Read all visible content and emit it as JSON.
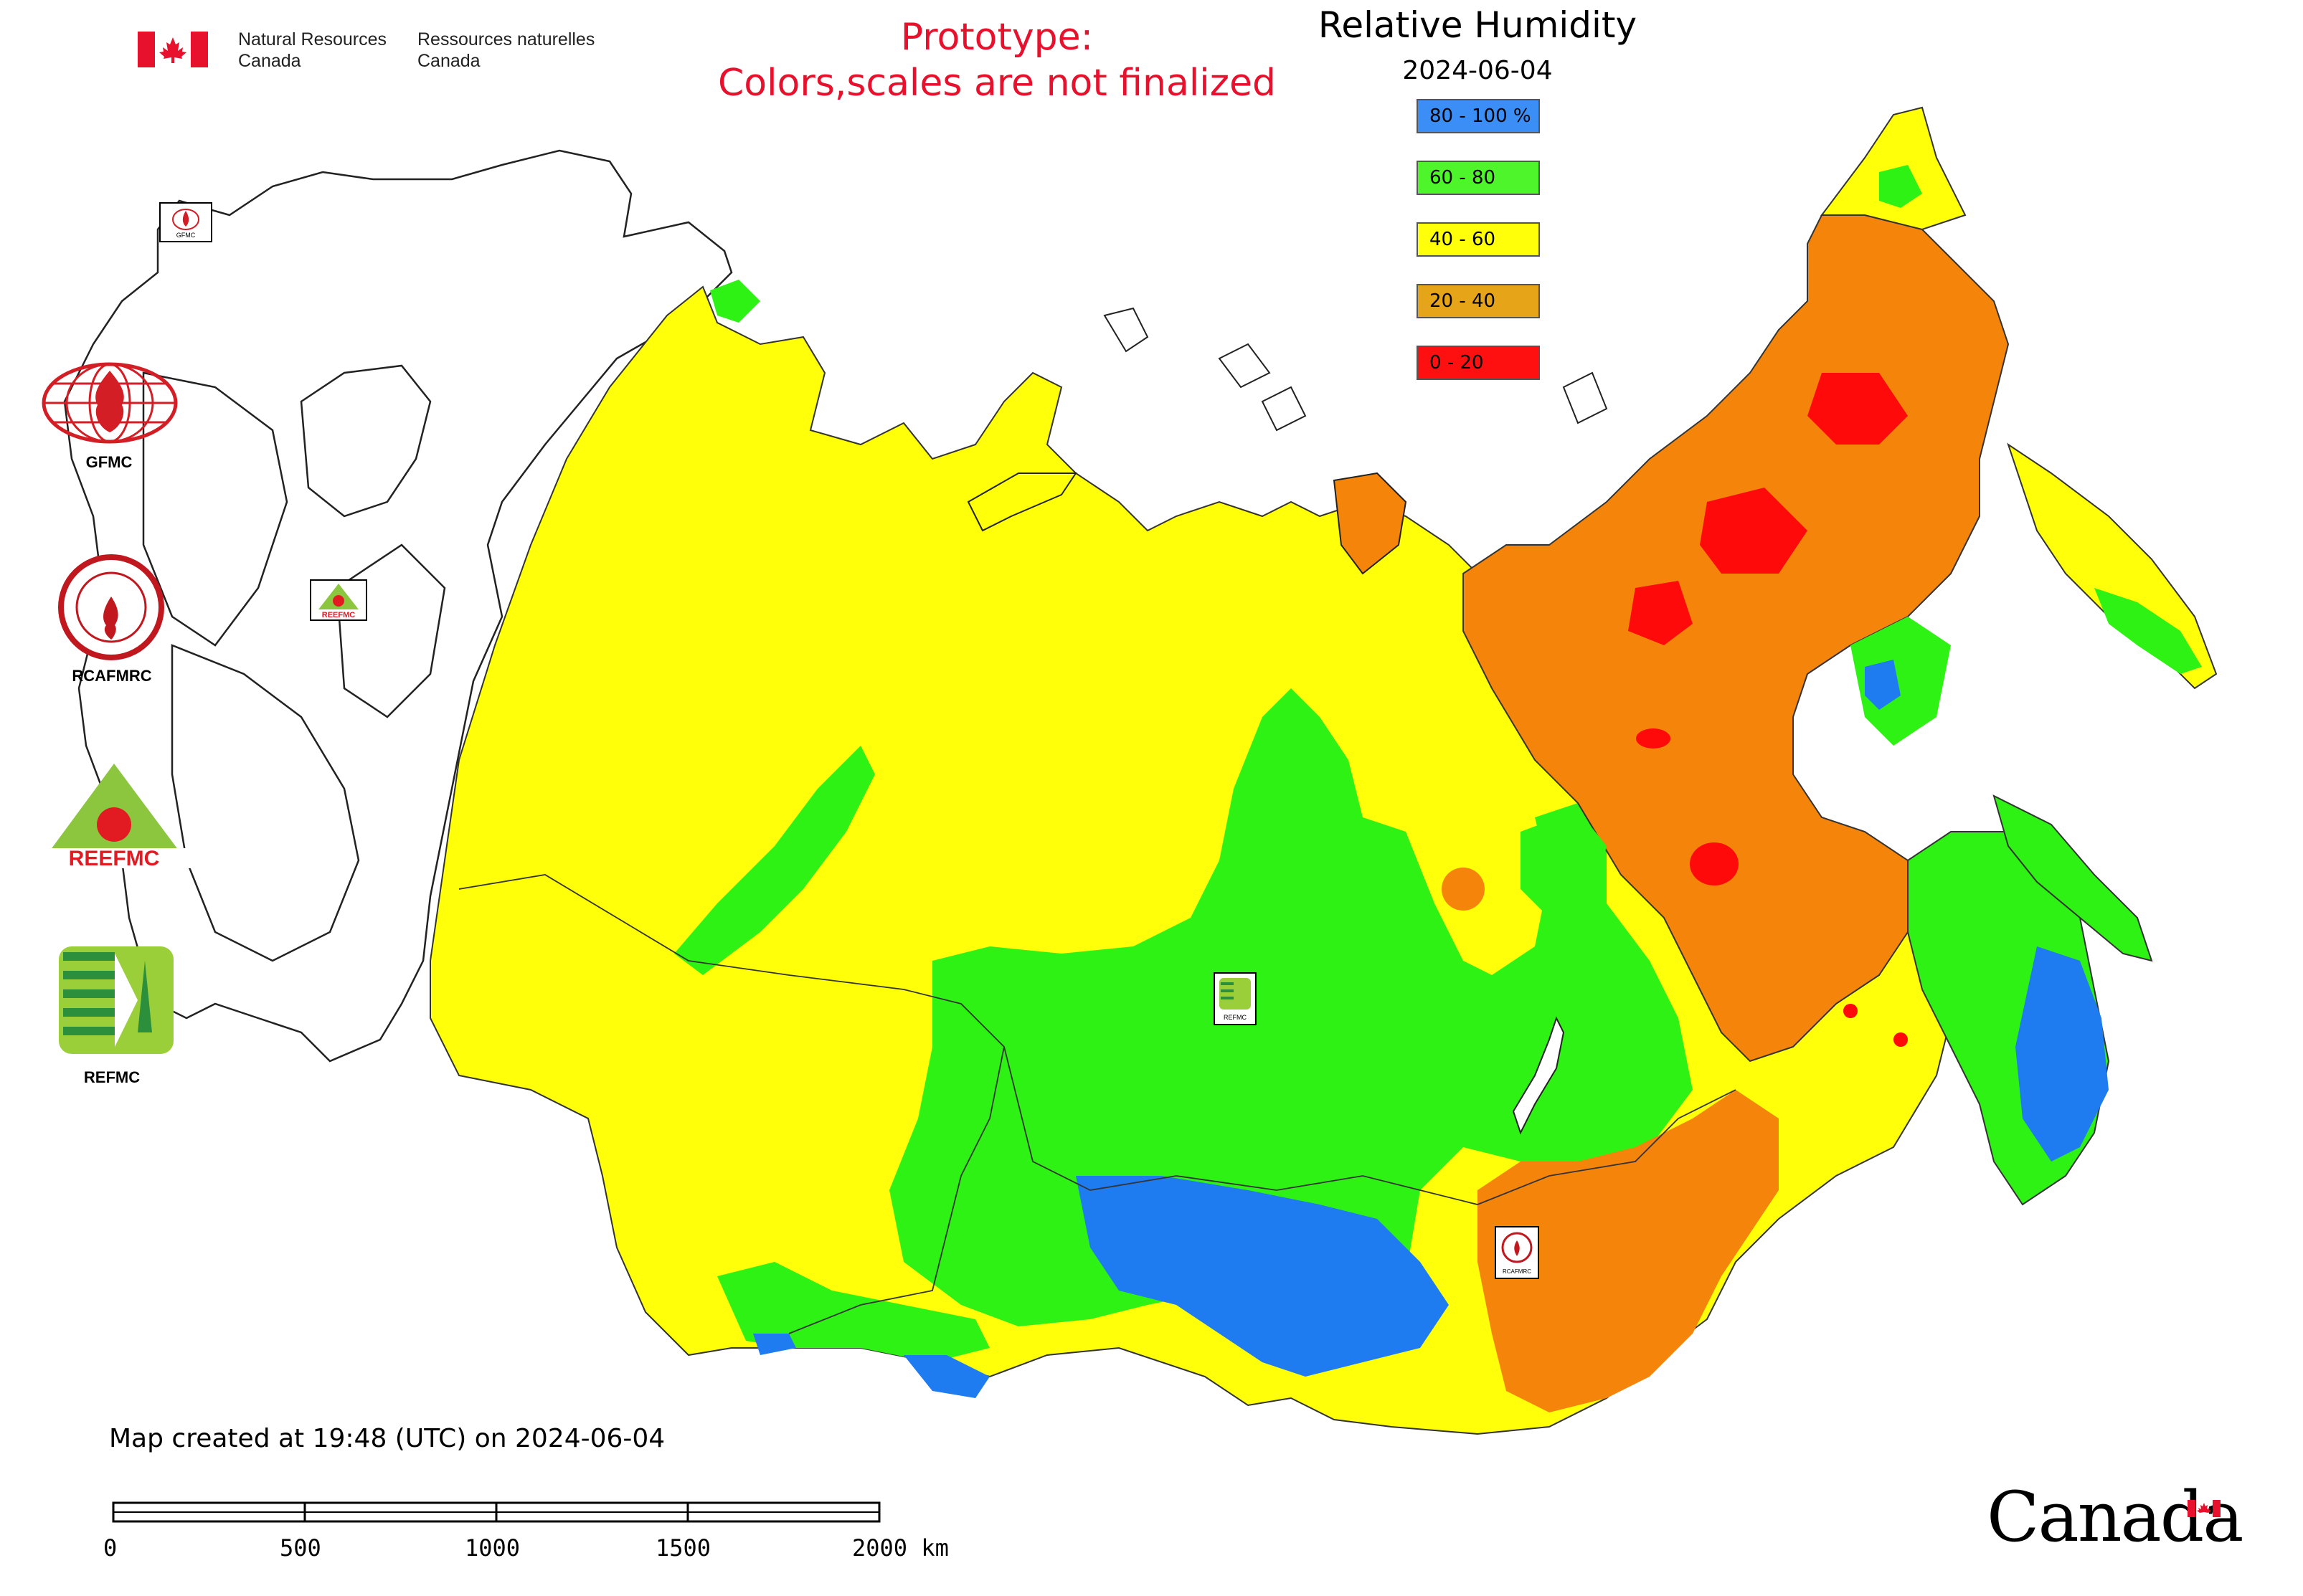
{
  "header": {
    "gov_en": [
      "Natural Resources",
      "Canada"
    ],
    "gov_fr": [
      "Ressources naturelles",
      "Canada"
    ],
    "prototype_lines": [
      "Prototype:",
      "Colors,scales are not finalized"
    ],
    "title": "Relative Humidity",
    "date": "2024-06-04"
  },
  "legend": {
    "items": [
      {
        "label": "80 - 100 %",
        "color": "#3a8ef5"
      },
      {
        "label": "60 - 80",
        "color": "#4ef52a"
      },
      {
        "label": "40 - 60",
        "color": "#ffff0a"
      },
      {
        "label": "20 - 40",
        "color": "#e6a418"
      },
      {
        "label": "0 - 20",
        "color": "#ff1010"
      }
    ]
  },
  "logos": {
    "gfmc": "GFMC",
    "rcafmrc": "RCAFMRC",
    "reefmc": "REEFMC",
    "refmc": "REFMC",
    "rcafmrc_badge_text": "RCAFMRC",
    "reefmc_badge_text": "REEFMC",
    "refmc_badge_text": "REFMC",
    "gfmc_badge_text": "GFMC"
  },
  "footer": {
    "created": "Map created at 19:48 (UTC) on 2024-06-04",
    "scale_labels": [
      "0",
      "500",
      "1000",
      "1500",
      "2000 km"
    ],
    "canada_wordmark": "Canada"
  },
  "map_colors": {
    "blue": "#1e7cf0",
    "green": "#2ef214",
    "yellow": "#ffff0a",
    "orange": "#f5850a",
    "red": "#ff0a0a",
    "land_outline": "#222222",
    "ocean": "#ffffff"
  }
}
